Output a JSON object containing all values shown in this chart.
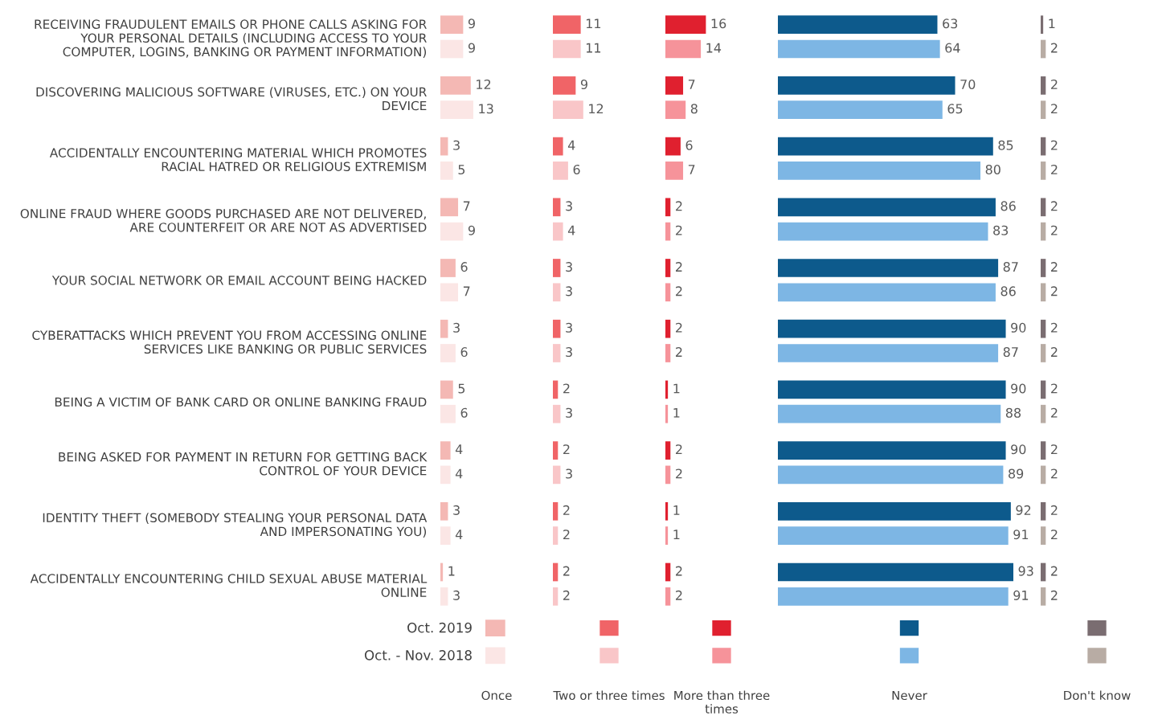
{
  "chart_data": [
    {
      "type": "bar",
      "orientation": "horizontal",
      "xlabel": "Once",
      "data_labels": true,
      "tick_labels": "y",
      "legend": "bottom",
      "categories": [
        "RECEIVING FRAUDULENT EMAILS OR PHONE CALLS ASKING FOR\nYOUR PERSONAL DETAILS (INCLUDING ACCESS TO YOUR\nCOMPUTER, LOGINS, BANKING OR PAYMENT INFORMATION)",
        "DISCOVERING MALICIOUS SOFTWARE (VIRUSES, ETC.) ON YOUR\nDEVICE",
        "ACCIDENTALLY ENCOUNTERING MATERIAL WHICH PROMOTES\nRACIAL HATRED OR RELIGIOUS EXTREMISM",
        "ONLINE FRAUD WHERE GOODS PURCHASED ARE NOT DELIVERED,\nARE COUNTERFEIT OR ARE NOT AS ADVERTISED",
        "YOUR SOCIAL NETWORK OR EMAIL ACCOUNT BEING HACKED",
        "CYBERATTACKS WHICH PREVENT YOU FROM ACCESSING ONLINE\nSERVICES LIKE BANKING OR PUBLIC SERVICES",
        "BEING A VICTIM OF BANK CARD OR ONLINE BANKING FRAUD",
        "BEING ASKED FOR PAYMENT IN RETURN FOR GETTING BACK\nCONTROL OF YOUR DEVICE",
        "IDENTITY THEFT (SOMEBODY STEALING YOUR PERSONAL DATA\nAND IMPERSONATING YOU)",
        "ACCIDENTALLY ENCOUNTERING CHILD SEXUAL ABUSE MATERIAL\nONLINE"
      ],
      "series": [
        {
          "name": "Oct. 2019",
          "color": "#f4b8b4",
          "values": [
            9,
            12,
            3,
            7,
            6,
            3,
            5,
            4,
            3,
            1
          ]
        },
        {
          "name": "Oct. - Nov. 2018",
          "color": "#fbe6e5",
          "values": [
            9,
            13,
            5,
            9,
            7,
            6,
            6,
            4,
            4,
            3
          ]
        }
      ]
    },
    {
      "type": "bar",
      "orientation": "horizontal",
      "xlabel": "Two or three times",
      "data_labels": true,
      "tick_labels": false,
      "series": [
        {
          "color": "#f06467",
          "values": [
            11,
            9,
            4,
            3,
            3,
            3,
            2,
            2,
            2,
            2
          ]
        },
        {
          "color": "#f9c6c8",
          "values": [
            11,
            12,
            6,
            4,
            3,
            3,
            3,
            3,
            2,
            2
          ]
        }
      ]
    },
    {
      "type": "bar",
      "orientation": "horizontal",
      "xlabel": "More than three\ntimes",
      "data_labels": true,
      "tick_labels": false,
      "series": [
        {
          "color": "#e0202f",
          "values": [
            16,
            7,
            6,
            2,
            2,
            2,
            1,
            2,
            1,
            2
          ]
        },
        {
          "color": "#f6939a",
          "values": [
            14,
            8,
            7,
            2,
            2,
            2,
            1,
            2,
            1,
            2
          ]
        }
      ]
    },
    {
      "type": "bar",
      "orientation": "horizontal",
      "xlabel": "Never",
      "data_labels": true,
      "tick_labels": false,
      "series": [
        {
          "color": "#0d5a8c",
          "values": [
            63,
            70,
            85,
            86,
            87,
            90,
            90,
            90,
            92,
            93
          ]
        },
        {
          "color": "#7db6e4",
          "values": [
            64,
            65,
            80,
            83,
            86,
            87,
            88,
            89,
            91,
            91
          ]
        }
      ]
    },
    {
      "type": "bar",
      "orientation": "horizontal",
      "xlabel": "Don't know",
      "data_labels": true,
      "tick_labels": false,
      "series": [
        {
          "color": "#7a6d71",
          "values": [
            1,
            2,
            2,
            2,
            2,
            2,
            2,
            2,
            2,
            2
          ]
        },
        {
          "color": "#b8aca4",
          "values": [
            2,
            2,
            2,
            2,
            2,
            2,
            2,
            2,
            2,
            2
          ]
        }
      ]
    }
  ]
}
